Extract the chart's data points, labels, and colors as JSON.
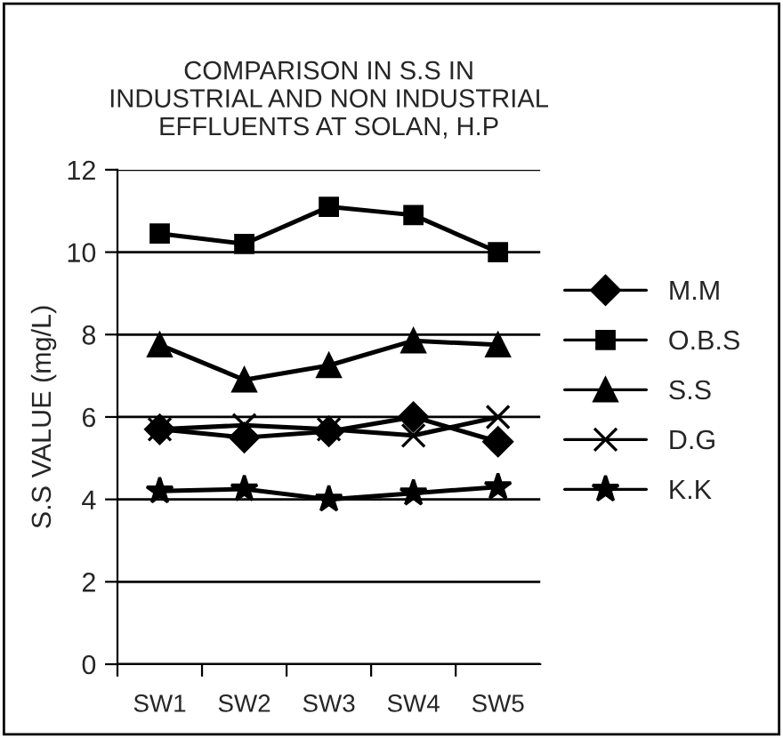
{
  "chart_data": {
    "type": "line",
    "title": "COMPARISON IN S.S IN\nINDUSTRIAL AND NON INDUSTRIAL\nEFFLUENTS AT SOLAN, H.P",
    "ylabel": "S.S VALUE (mg/L)",
    "categories": [
      "SW1",
      "SW2",
      "SW3",
      "SW4",
      "SW5"
    ],
    "series": [
      {
        "name": "M.M",
        "color": "#000000",
        "marker": "diamond",
        "values": [
          5.7,
          5.5,
          5.65,
          6.0,
          5.4
        ]
      },
      {
        "name": "O.B.S",
        "color": "#000000",
        "marker": "square",
        "values": [
          10.45,
          10.2,
          11.1,
          10.9,
          10.0
        ]
      },
      {
        "name": "S.S",
        "color": "#000000",
        "marker": "triangle",
        "values": [
          7.75,
          6.9,
          7.25,
          7.85,
          7.75
        ]
      },
      {
        "name": "D.G",
        "color": "#000000",
        "marker": "cross",
        "values": [
          5.7,
          5.8,
          5.7,
          5.55,
          6.0
        ]
      },
      {
        "name": "K.K",
        "color": "#000000",
        "marker": "star",
        "values": [
          4.2,
          4.25,
          4.0,
          4.15,
          4.3
        ]
      }
    ],
    "ylim": [
      0,
      12
    ],
    "yticks": [
      0,
      2,
      4,
      6,
      8,
      10,
      12
    ],
    "grid": "y",
    "legend": "right",
    "line_style": "solid"
  }
}
